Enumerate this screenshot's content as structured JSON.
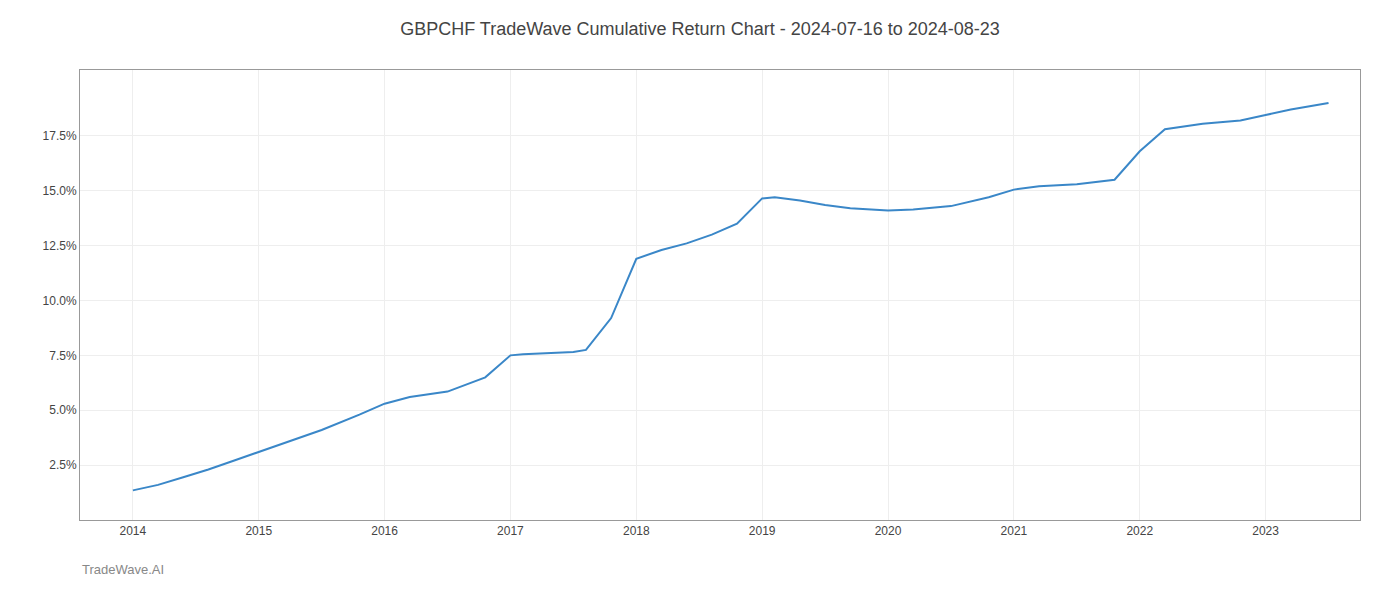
{
  "chart_data": {
    "type": "line",
    "title": "GBPCHF TradeWave Cumulative Return Chart - 2024-07-16 to 2024-08-23",
    "annotations": [
      {
        "text": "TradeWave.AI"
      }
    ],
    "x": [
      2014.0,
      2014.2,
      2014.4,
      2014.6,
      2014.8,
      2015.0,
      2015.2,
      2015.5,
      2015.8,
      2016.0,
      2016.2,
      2016.5,
      2016.8,
      2017.0,
      2017.1,
      2017.3,
      2017.5,
      2017.6,
      2017.8,
      2018.0,
      2018.2,
      2018.4,
      2018.6,
      2018.8,
      2019.0,
      2019.1,
      2019.3,
      2019.5,
      2019.7,
      2020.0,
      2020.2,
      2020.5,
      2020.8,
      2021.0,
      2021.2,
      2021.5,
      2021.8,
      2022.0,
      2022.2,
      2022.5,
      2022.8,
      2023.0,
      2023.2,
      2023.5
    ],
    "values": [
      1.35,
      1.6,
      1.95,
      2.3,
      2.7,
      3.1,
      3.5,
      4.1,
      4.8,
      5.3,
      5.6,
      5.85,
      6.5,
      7.5,
      7.55,
      7.6,
      7.65,
      7.75,
      9.2,
      11.9,
      12.3,
      12.6,
      13.0,
      13.5,
      14.65,
      14.7,
      14.55,
      14.35,
      14.2,
      14.1,
      14.15,
      14.3,
      14.7,
      15.05,
      15.2,
      15.3,
      15.5,
      16.8,
      17.8,
      18.05,
      18.2,
      18.45,
      18.7,
      19.0
    ],
    "color": "#3a87c8",
    "xlim": [
      2013.58,
      2023.75
    ],
    "ylim": [
      0.0,
      20.5
    ],
    "xticks": [
      2014,
      2015,
      2016,
      2017,
      2018,
      2019,
      2020,
      2021,
      2022,
      2023
    ],
    "yticks": [
      {
        "value": 2.5,
        "label": "2.5%"
      },
      {
        "value": 5.0,
        "label": "5.0%"
      },
      {
        "value": 7.5,
        "label": "7.5%"
      },
      {
        "value": 10.0,
        "label": "10.0%"
      },
      {
        "value": 12.5,
        "label": "12.5%"
      },
      {
        "value": 15.0,
        "label": "15.0%"
      },
      {
        "value": 17.5,
        "label": "17.5%"
      }
    ],
    "grid": true
  }
}
